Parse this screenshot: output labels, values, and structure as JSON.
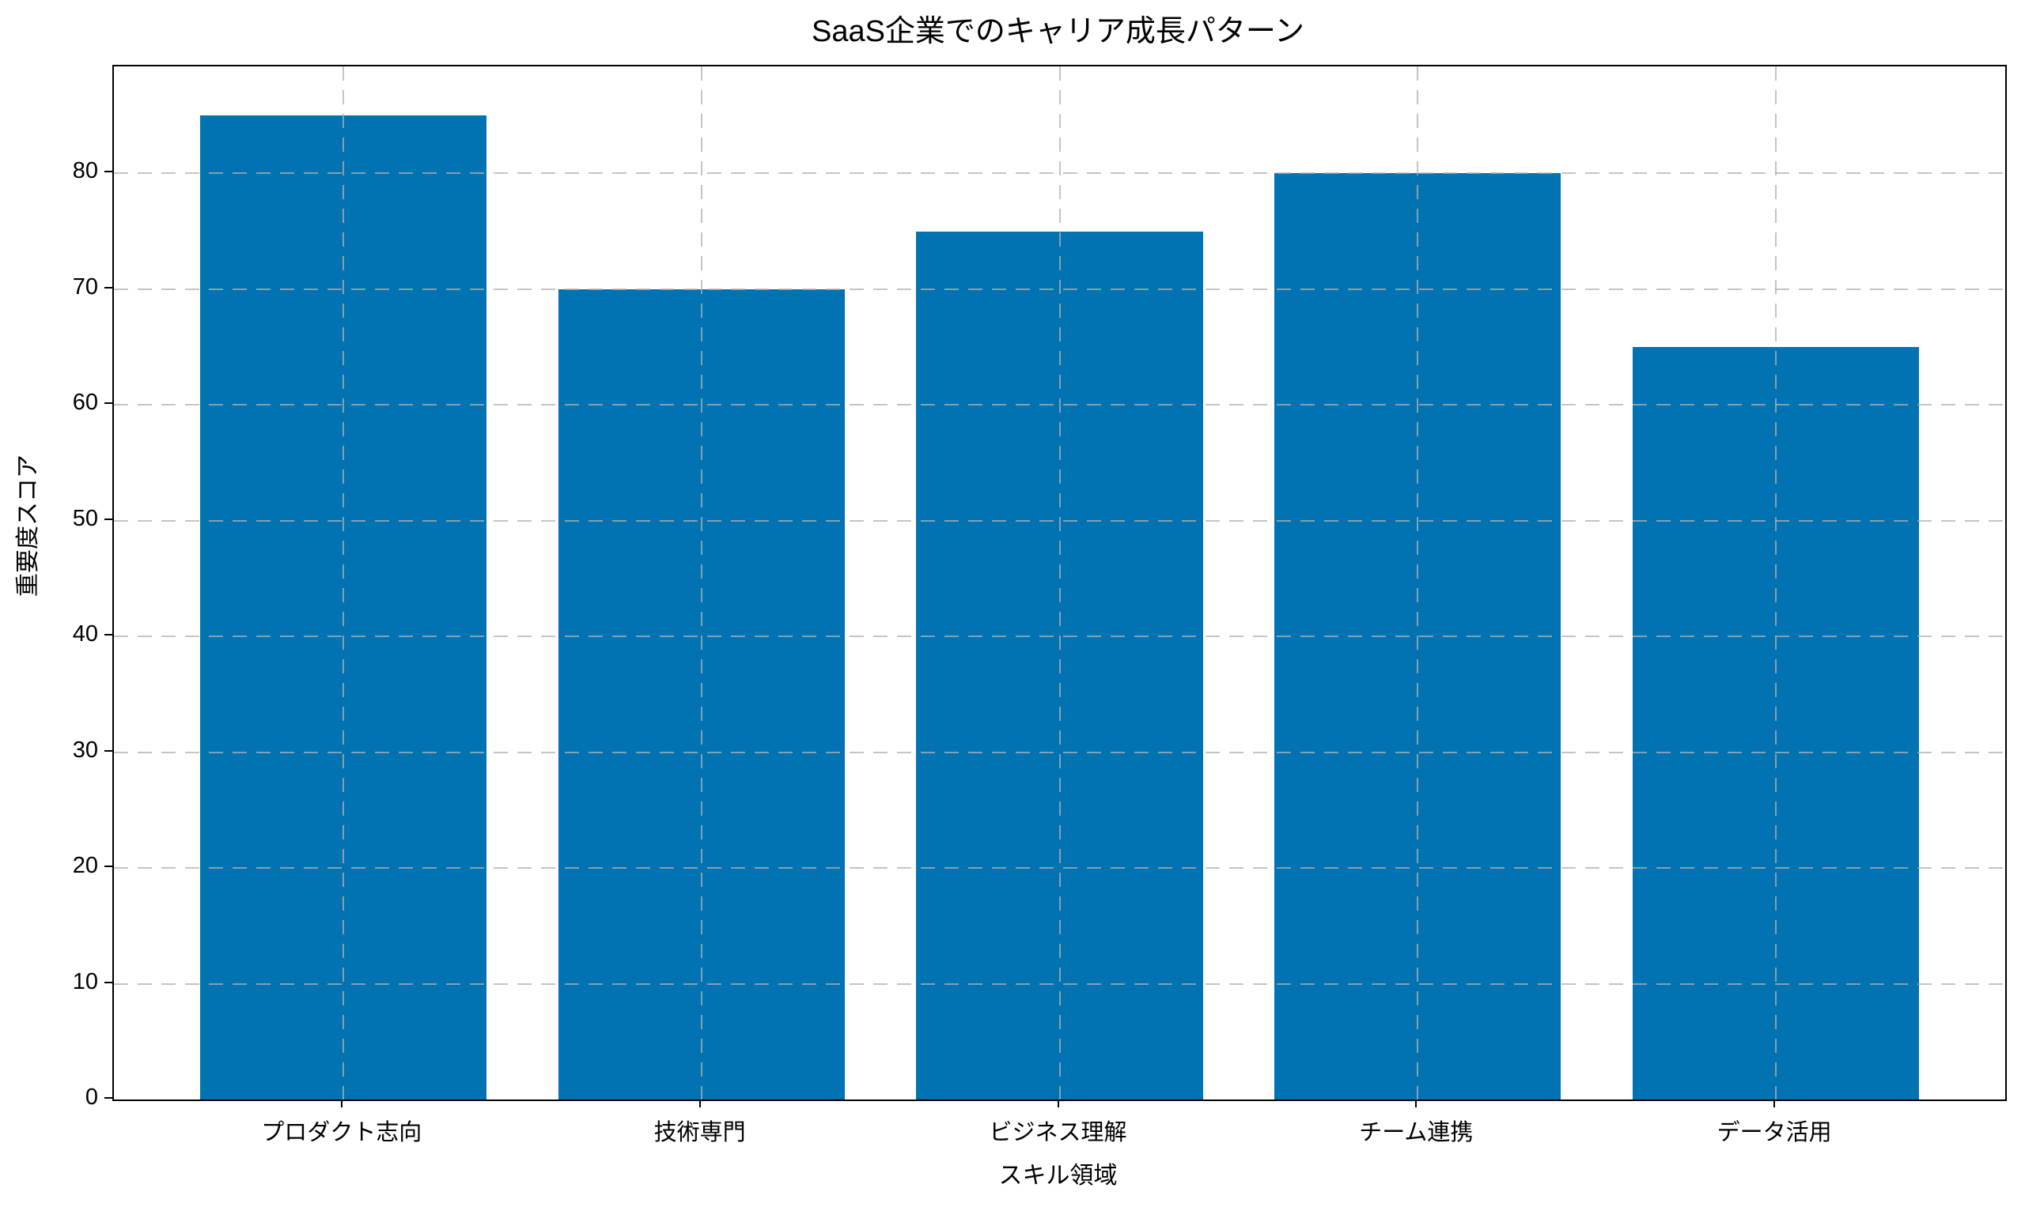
{
  "chart_data": {
    "type": "bar",
    "title": "SaaS企業でのキャリア成長パターン",
    "xlabel": "スキル領域",
    "ylabel": "重要度スコア",
    "categories": [
      "プロダクト志向",
      "技術専門",
      "ビジネス理解",
      "チーム連携",
      "データ活用"
    ],
    "values": [
      85,
      70,
      75,
      80,
      65
    ],
    "yticks": [
      0,
      10,
      20,
      30,
      40,
      50,
      60,
      70,
      80
    ],
    "ylim": [
      0,
      89.25
    ],
    "bar_color": "#0173b2",
    "grid_color": "#b0b0b0",
    "grid_style": "dashed",
    "grid_axes": "both",
    "grid_above_bars": true,
    "legend": null,
    "background_color": "#ffffff",
    "spine_color": "#000000"
  }
}
